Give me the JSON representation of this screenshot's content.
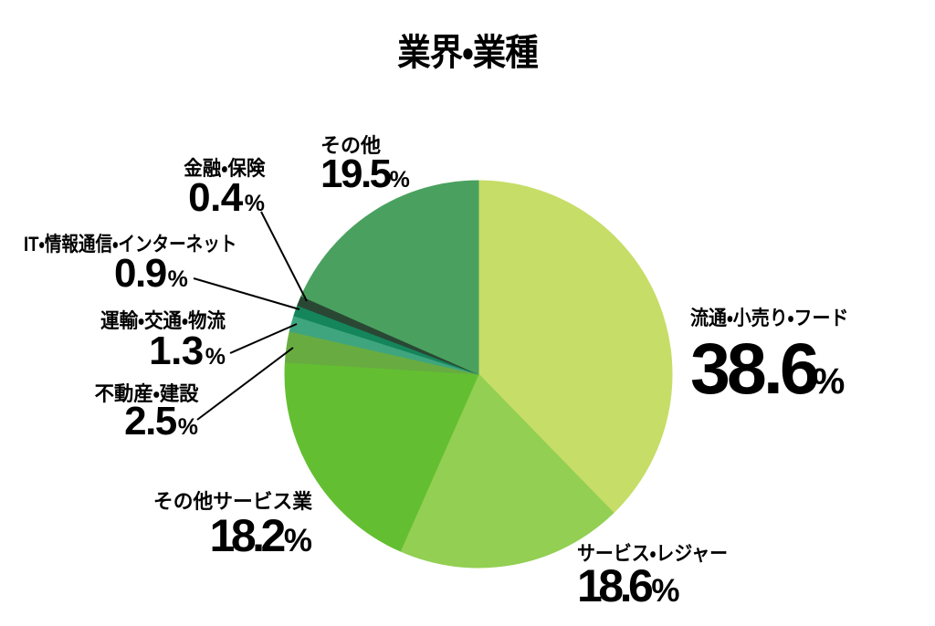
{
  "chart_data": {
    "type": "pie",
    "title": "業界・業種",
    "unit": "%",
    "start_angle_deg": 0,
    "direction": "clockwise",
    "legend_position": "none",
    "segments": [
      {
        "id": "retail",
        "label": "流通・小売り・フード",
        "value": 38.6,
        "value_text": "38.6",
        "color": "#c6dd67"
      },
      {
        "id": "serviceleisure",
        "label": "サービス・レジャー",
        "value": 18.6,
        "value_text": "18.6",
        "color": "#92cf53"
      },
      {
        "id": "otherservices",
        "label": "その他サービス業",
        "value": 18.2,
        "value_text": "18.2",
        "color": "#63bf31"
      },
      {
        "id": "realestate",
        "label": "不動産・建設",
        "value": 2.5,
        "value_text": "2.5",
        "color": "#68ac41"
      },
      {
        "id": "transport",
        "label": "運輸・交通・物流",
        "value": 1.3,
        "value_text": "1.3",
        "color": "#3fa57e"
      },
      {
        "id": "it",
        "label": "IT・情報通信・インターネット",
        "value": 0.9,
        "value_text": "0.9",
        "color": "#15855b"
      },
      {
        "id": "finance",
        "label": "金融・保険",
        "value": 0.4,
        "value_text": "0.4",
        "color": "#2a4734"
      },
      {
        "id": "other",
        "label": "その他",
        "value": 19.5,
        "value_text": "19.5",
        "color": "#4aa15f"
      }
    ],
    "leader_line_color": "#000000"
  }
}
